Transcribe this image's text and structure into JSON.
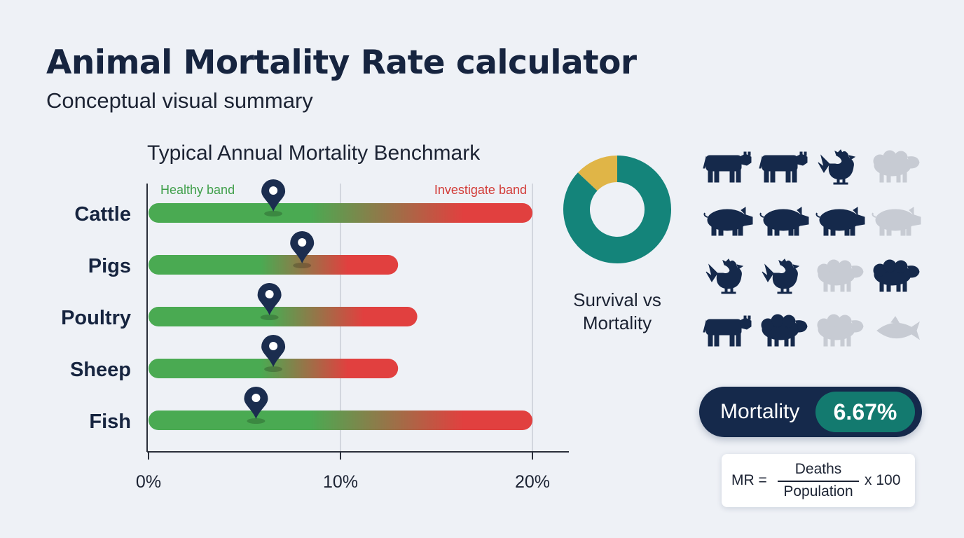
{
  "header": {
    "title": "Animal Mortality Rate calculator",
    "subtitle": "Conceptual visual summary"
  },
  "chart_data": [
    {
      "type": "bar",
      "title": "Typical Annual Mortality Benchmark",
      "categories": [
        "Cattle",
        "Pigs",
        "Poultry",
        "Sheep",
        "Fish"
      ],
      "values": [
        20,
        13,
        14,
        13,
        20
      ],
      "markers": [
        6.5,
        8,
        6.3,
        6.5,
        5.6
      ],
      "bands": {
        "healthy": "Healthy band",
        "investigate": "Investigate band"
      },
      "x_ticks": [
        "0%",
        "10%",
        "20%"
      ],
      "xlim": [
        0,
        20
      ],
      "unit": "%",
      "grid": true,
      "colors": {
        "healthy": "#4aaa52",
        "investigate": "#e1403f",
        "marker": "#1b2d4f",
        "axis": "#2a2f3a"
      }
    },
    {
      "type": "pie",
      "title": "Survival vs Mortality",
      "segments": [
        {
          "value": 87,
          "color": "#14847a"
        },
        {
          "value": 13,
          "color": "#e0b547"
        }
      ]
    }
  ],
  "icon_grid": {
    "rows": [
      [
        {
          "icon": "cow-icon",
          "shade": "#15294b"
        },
        {
          "icon": "cow-icon",
          "shade": "#15294b"
        },
        {
          "icon": "chicken-icon",
          "shade": "#15294b"
        },
        {
          "icon": "sheep-icon",
          "shade": "#c7cbd3"
        }
      ],
      [
        {
          "icon": "pig-icon",
          "shade": "#15294b"
        },
        {
          "icon": "pig-icon",
          "shade": "#15294b"
        },
        {
          "icon": "pig-icon",
          "shade": "#15294b"
        },
        {
          "icon": "pig-icon",
          "shade": "#c7cbd3"
        }
      ],
      [
        {
          "icon": "chicken-icon",
          "shade": "#15294b"
        },
        {
          "icon": "chicken-icon",
          "shade": "#15294b"
        },
        {
          "icon": "sheep-icon",
          "shade": "#c7cbd3"
        },
        {
          "icon": "sheep-icon",
          "shade": "#15294b"
        }
      ],
      [
        {
          "icon": "cow-icon",
          "shade": "#15294b"
        },
        {
          "icon": "sheep-icon",
          "shade": "#15294b"
        },
        {
          "icon": "sheep-icon",
          "shade": "#c7cbd3"
        },
        {
          "icon": "fish-icon",
          "shade": "#c7cbd3"
        }
      ]
    ]
  },
  "mortality": {
    "label": "Mortality",
    "value": "6.67%"
  },
  "formula": {
    "lhs": "MR =",
    "numerator": "Deaths",
    "denominator": "Population",
    "rhs": "x 100"
  }
}
